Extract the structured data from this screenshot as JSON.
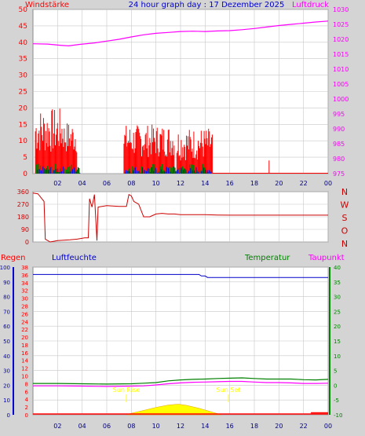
{
  "header": {
    "left_label": "Windstärke",
    "title": "24 hour graph day : 17 Dezember 2025",
    "right_label": "Luftdruck"
  },
  "colors": {
    "background": "#d4d4d4",
    "plot_bg": "#ffffff",
    "grid": "#c8c8c8",
    "wind": "#ff0000",
    "gust_blue": "#0000ff",
    "gust_green": "#008000",
    "pressure": "#ff00ff",
    "direction": "#cc0000",
    "humidity": "#0000cc",
    "temperature": "#008000",
    "dewpoint": "#ff00ff",
    "rain": "#ff0000",
    "solar": "#ffff00",
    "hour_labels": "#000080",
    "sun_label": "#ffff00"
  },
  "chart_data": [
    {
      "id": "wind_pressure",
      "type": "line",
      "x_ticks": [
        "02",
        "04",
        "06",
        "08",
        "10",
        "12",
        "14",
        "16",
        "18",
        "20",
        "22",
        "00"
      ],
      "left_axis": {
        "label": "Windstärke",
        "ticks": [
          0,
          5,
          10,
          15,
          20,
          25,
          30,
          35,
          40,
          45,
          50
        ],
        "ylim": [
          0,
          50
        ]
      },
      "right_axis": {
        "label": "Luftdruck",
        "ticks": [
          975,
          980,
          985,
          990,
          995,
          1000,
          1005,
          1010,
          1015,
          1020,
          1025,
          1030
        ],
        "ylim": [
          975,
          1030
        ]
      },
      "series": [
        {
          "name": "Luftdruck",
          "axis": "right",
          "points": [
            [
              0,
              1018.5
            ],
            [
              1.2,
              1018.4
            ],
            [
              2.2,
              1018.0
            ],
            [
              2.9,
              1017.8
            ],
            [
              3.8,
              1018.3
            ],
            [
              5,
              1018.8
            ],
            [
              6,
              1019.4
            ],
            [
              7,
              1020.0
            ],
            [
              8,
              1020.8
            ],
            [
              9,
              1021.5
            ],
            [
              10,
              1022.0
            ],
            [
              11,
              1022.3
            ],
            [
              12,
              1022.6
            ],
            [
              13,
              1022.7
            ],
            [
              14,
              1022.6
            ],
            [
              15,
              1022.8
            ],
            [
              16,
              1022.9
            ],
            [
              17,
              1023.2
            ],
            [
              18,
              1023.6
            ],
            [
              19,
              1024.1
            ],
            [
              20,
              1024.6
            ],
            [
              21,
              1025.0
            ],
            [
              22,
              1025.4
            ],
            [
              23,
              1025.8
            ],
            [
              24,
              1026.1
            ]
          ]
        }
      ]
    },
    {
      "id": "wind_direction",
      "type": "line",
      "left_axis": {
        "ticks": [
          0,
          90,
          180,
          270,
          360
        ],
        "ylim": [
          0,
          360
        ]
      },
      "right_labels": [
        "N",
        "W",
        "S",
        "O",
        "N"
      ],
      "series": [
        {
          "name": "",
          "points": [
            [
              0,
              350
            ],
            [
              0.4,
              345
            ],
            [
              0.9,
              290
            ],
            [
              1.0,
              20
            ],
            [
              1.4,
              0
            ],
            [
              2.0,
              10
            ],
            [
              3.0,
              15
            ],
            [
              3.6,
              20
            ],
            [
              4.2,
              30
            ],
            [
              4.5,
              30
            ],
            [
              4.6,
              310
            ],
            [
              4.8,
              250
            ],
            [
              5.0,
              340
            ],
            [
              5.2,
              10
            ],
            [
              5.3,
              250
            ],
            [
              6.0,
              260
            ],
            [
              7.0,
              255
            ],
            [
              7.6,
              255
            ],
            [
              7.8,
              340
            ],
            [
              8.0,
              330
            ],
            [
              8.2,
              290
            ],
            [
              8.6,
              270
            ],
            [
              9.0,
              180
            ],
            [
              9.5,
              180
            ],
            [
              10.0,
              200
            ],
            [
              10.5,
              205
            ],
            [
              11.0,
              200
            ],
            [
              11.5,
              200
            ],
            [
              12.0,
              195
            ],
            [
              13,
              195
            ],
            [
              14,
              195
            ],
            [
              15,
              193
            ],
            [
              16,
              192
            ],
            [
              20,
              192
            ],
            [
              24,
              192
            ]
          ]
        }
      ]
    },
    {
      "id": "humidity_temp",
      "type": "line",
      "x_ticks": [
        "02",
        "04",
        "06",
        "08",
        "10",
        "12",
        "14",
        "16",
        "18",
        "20",
        "22",
        "00"
      ],
      "rain_axis": {
        "label": "Regen",
        "ticks": [
          0,
          2,
          4,
          6,
          8,
          10,
          12,
          14,
          16,
          18,
          20,
          22,
          24,
          26,
          28,
          30,
          32,
          34,
          36,
          38
        ]
      },
      "humidity_axis": {
        "label": "Luftfeuchte",
        "ticks": [
          0,
          10,
          20,
          30,
          40,
          50,
          60,
          70,
          80,
          90,
          100
        ],
        "ylim": [
          0,
          100
        ]
      },
      "temp_axis": {
        "label": "Temperatur",
        "ticks": [
          -10,
          -5,
          0,
          5,
          10,
          15,
          20,
          25,
          30,
          35,
          40
        ],
        "ylim": [
          -10,
          40
        ]
      },
      "right_label": "Taupunkt",
      "sun_rise_label": "Sun Rise",
      "sun_set_label": "Sun Set",
      "series": [
        {
          "name": "Luftfeuchte",
          "points": [
            [
              0,
              95
            ],
            [
              13.5,
              95
            ],
            [
              13.7,
              94
            ],
            [
              14,
              94
            ],
            [
              14.2,
              93
            ],
            [
              24,
              93
            ]
          ]
        },
        {
          "name": "Temperatur",
          "points": [
            [
              0,
              0.6
            ],
            [
              2,
              0.6
            ],
            [
              4,
              0.5
            ],
            [
              6,
              0.4
            ],
            [
              8,
              0.5
            ],
            [
              9,
              0.7
            ],
            [
              10,
              0.9
            ],
            [
              11,
              1.5
            ],
            [
              12,
              1.8
            ],
            [
              13,
              2.0
            ],
            [
              14,
              2.1
            ],
            [
              15,
              2.3
            ],
            [
              16,
              2.4
            ],
            [
              17,
              2.5
            ],
            [
              18,
              2.3
            ],
            [
              19,
              2.1
            ],
            [
              20,
              2.1
            ],
            [
              21,
              2.1
            ],
            [
              22,
              1.9
            ],
            [
              23,
              1.8
            ],
            [
              24,
              2.0
            ]
          ]
        },
        {
          "name": "Taupunkt",
          "points": [
            [
              0,
              -0.2
            ],
            [
              2,
              -0.2
            ],
            [
              4,
              -0.3
            ],
            [
              6,
              -0.4
            ],
            [
              8,
              -0.3
            ],
            [
              9,
              -0.2
            ],
            [
              10,
              0.1
            ],
            [
              11,
              0.5
            ],
            [
              12,
              0.8
            ],
            [
              13,
              1.0
            ],
            [
              14,
              1.1
            ],
            [
              15,
              1.2
            ],
            [
              16,
              1.3
            ],
            [
              17,
              1.3
            ],
            [
              18,
              1.1
            ],
            [
              19,
              0.9
            ],
            [
              20,
              0.9
            ],
            [
              21,
              0.8
            ],
            [
              22,
              0.6
            ],
            [
              23,
              0.6
            ],
            [
              24,
              0.7
            ]
          ]
        },
        {
          "name": "Solar",
          "points": [
            [
              7.6,
              0
            ],
            [
              8,
              0.5
            ],
            [
              9,
              1.5
            ],
            [
              10,
              2.5
            ],
            [
              11,
              3.3
            ],
            [
              11.8,
              3.6
            ],
            [
              12.5,
              3.2
            ],
            [
              13.5,
              2.2
            ],
            [
              14.5,
              1.0
            ],
            [
              15.3,
              0
            ]
          ]
        }
      ]
    }
  ]
}
